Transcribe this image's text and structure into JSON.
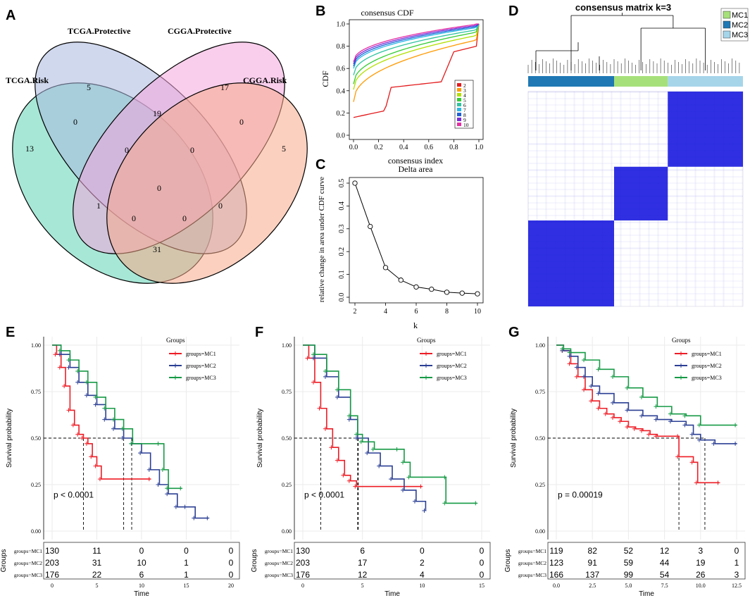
{
  "panel_labels": [
    "A",
    "B",
    "C",
    "D",
    "E",
    "F",
    "G"
  ],
  "chart_data": [
    {
      "panel": "A",
      "type": "venn",
      "sets": [
        "TCGA.Risk",
        "TCGA.Protective",
        "CGGA.Protective",
        "CGGA.Risk"
      ],
      "set_colors": [
        "#5fd4b4",
        "#a9b8e0",
        "#f4a6dc",
        "#f7a98a"
      ],
      "regions": [
        {
          "name": "TCGA.Risk only",
          "value": "13"
        },
        {
          "name": "TCGA.Protective only",
          "value": "5"
        },
        {
          "name": "CGGA.Protective only",
          "value": "17"
        },
        {
          "name": "CGGA.Risk only",
          "value": "5"
        },
        {
          "name": "TCGA.Risk & TCGA.Protective",
          "value": "0"
        },
        {
          "name": "TCGA.Protective & CGGA.Protective",
          "value": "19"
        },
        {
          "name": "CGGA.Protective & CGGA.Risk",
          "value": "0"
        },
        {
          "name": "TCGA.Risk & TCGA.Protective & CGGA.Protective",
          "value": "0"
        },
        {
          "name": "TCGA.Protective & CGGA.Protective & CGGA.Risk",
          "value": "0"
        },
        {
          "name": "all four",
          "value": "0"
        },
        {
          "name": "TCGA.Risk & CGGA.Protective",
          "value": "1"
        },
        {
          "name": "TCGA.Protective & CGGA.Risk",
          "value": "0"
        },
        {
          "name": "TCGA.Risk & CGGA.Protective & CGGA.Risk",
          "value": "0"
        },
        {
          "name": "TCGA.Risk & TCGA.Protective & CGGA.Risk",
          "value": "0"
        },
        {
          "name": "TCGA.Risk & CGGA.Risk",
          "value": "31"
        }
      ]
    },
    {
      "panel": "B",
      "type": "line",
      "title": "consensus CDF",
      "xlabel": "consensus index",
      "ylabel": "CDF",
      "xlim": [
        0,
        1
      ],
      "ylim": [
        0,
        1
      ],
      "xticks": [
        "0.0",
        "0.2",
        "0.4",
        "0.6",
        "0.8",
        "1.0"
      ],
      "yticks": [
        "0.0",
        "0.2",
        "0.4",
        "0.6",
        "0.8",
        "1.0"
      ],
      "legend": [
        "2",
        "3",
        "4",
        "5",
        "6",
        "7",
        "8",
        "9",
        "10"
      ],
      "colors": [
        "#e31a1c",
        "#ff9900",
        "#b2df00",
        "#33cc33",
        "#2ec4a0",
        "#29b6e6",
        "#1f5fd6",
        "#7a2bd6",
        "#e62ea3"
      ],
      "series": [
        {
          "name": "2",
          "start": 0.16,
          "end": 0.8
        },
        {
          "name": "3",
          "start": 0.3,
          "end": 0.86
        },
        {
          "name": "4",
          "start": 0.41,
          "end": 0.9
        },
        {
          "name": "5",
          "start": 0.46,
          "end": 0.93
        },
        {
          "name": "6",
          "start": 0.54,
          "end": 0.95
        },
        {
          "name": "7",
          "start": 0.6,
          "end": 0.97
        },
        {
          "name": "8",
          "start": 0.62,
          "end": 0.98
        },
        {
          "name": "9",
          "start": 0.64,
          "end": 0.99
        },
        {
          "name": "10",
          "start": 0.66,
          "end": 1.0
        }
      ]
    },
    {
      "panel": "C",
      "type": "line",
      "title": "Delta area",
      "xlabel": "k",
      "ylabel": "relative change in area under CDF curve",
      "x": [
        2,
        3,
        4,
        5,
        6,
        7,
        8,
        9,
        10
      ],
      "y": [
        0.5,
        0.31,
        0.13,
        0.075,
        0.045,
        0.035,
        0.022,
        0.018,
        0.015
      ],
      "xlim": [
        2,
        10
      ],
      "ylim": [
        0,
        0.5
      ],
      "xticks": [
        "2",
        "4",
        "6",
        "8",
        "10"
      ],
      "yticks": [
        "0.0",
        "0.1",
        "0.2",
        "0.3",
        "0.4",
        "0.5"
      ]
    },
    {
      "panel": "D",
      "type": "heatmap",
      "title": "consensus matrix k=3",
      "legend": [
        "MC1",
        "MC2",
        "MC3"
      ],
      "legend_colors": [
        "#a6e07a",
        "#1f78b4",
        "#a6d5ea"
      ],
      "cluster_order": [
        "MC2",
        "MC1",
        "MC3"
      ],
      "cluster_fractions": [
        0.4,
        0.25,
        0.35
      ],
      "heat_color": "#1a1adf"
    },
    {
      "panel": "E",
      "type": "survival",
      "legend_title": "Groups",
      "legend": [
        "groups=MC1",
        "groups=MC2",
        "groups=MC3"
      ],
      "colors": [
        "#ee1c25",
        "#2b3f94",
        "#169a45"
      ],
      "xlabel": "Time",
      "ylabel": "Survival probability",
      "xlim": [
        0,
        20
      ],
      "ylim": [
        0,
        1
      ],
      "xticks": [
        "0",
        "5",
        "10",
        "15",
        "20"
      ],
      "yticks": [
        "0.00",
        "0.25",
        "0.50",
        "0.75",
        "1.00"
      ],
      "pvalue": "p < 0.0001",
      "curves": [
        {
          "name": "MC1",
          "points": [
            [
              0,
              1
            ],
            [
              0.5,
              0.95
            ],
            [
              1,
              0.88
            ],
            [
              1.5,
              0.78
            ],
            [
              2,
              0.65
            ],
            [
              2.5,
              0.57
            ],
            [
              3,
              0.52
            ],
            [
              3.5,
              0.5
            ],
            [
              4,
              0.47
            ],
            [
              4.5,
              0.4
            ],
            [
              5,
              0.35
            ],
            [
              5.5,
              0.28
            ],
            [
              11,
              0.28
            ]
          ]
        },
        {
          "name": "MC2",
          "points": [
            [
              0,
              1
            ],
            [
              1,
              0.95
            ],
            [
              2,
              0.88
            ],
            [
              3,
              0.8
            ],
            [
              4,
              0.73
            ],
            [
              5,
              0.68
            ],
            [
              6,
              0.6
            ],
            [
              7,
              0.55
            ],
            [
              8,
              0.5
            ],
            [
              9,
              0.47
            ],
            [
              10,
              0.42
            ],
            [
              11,
              0.33
            ],
            [
              12,
              0.25
            ],
            [
              13,
              0.2
            ],
            [
              14,
              0.13
            ],
            [
              15,
              0.13
            ],
            [
              16,
              0.07
            ],
            [
              17.5,
              0.07
            ]
          ]
        },
        {
          "name": "MC3",
          "points": [
            [
              0,
              1
            ],
            [
              1,
              0.97
            ],
            [
              2,
              0.92
            ],
            [
              3,
              0.86
            ],
            [
              4,
              0.8
            ],
            [
              5,
              0.72
            ],
            [
              6,
              0.66
            ],
            [
              7,
              0.6
            ],
            [
              8,
              0.55
            ],
            [
              9,
              0.47
            ],
            [
              12,
              0.47
            ],
            [
              12.5,
              0.33
            ],
            [
              13,
              0.23
            ],
            [
              14.5,
              0.23
            ]
          ]
        }
      ],
      "medians": [
        3.5,
        8,
        8.9
      ],
      "risk_table": {
        "ylabel": "Groups",
        "rows": [
          {
            "label": "groups=MC1",
            "values": [
              "130",
              "11",
              "0",
              "0",
              "0"
            ]
          },
          {
            "label": "groups=MC2",
            "values": [
              "203",
              "31",
              "10",
              "1",
              "0"
            ]
          },
          {
            "label": "groups=MC3",
            "values": [
              "176",
              "22",
              "6",
              "1",
              "0"
            ]
          }
        ],
        "xticks": [
          "0",
          "5",
          "10",
          "15",
          "20"
        ],
        "xlabel": "Time"
      }
    },
    {
      "panel": "F",
      "type": "survival",
      "legend_title": "Groups",
      "legend": [
        "groups=MC1",
        "groups=MC2",
        "groups=MC3"
      ],
      "colors": [
        "#ee1c25",
        "#2b3f94",
        "#169a45"
      ],
      "xlabel": "Time",
      "ylabel": "Survival probability",
      "xlim": [
        0,
        15
      ],
      "ylim": [
        0,
        1
      ],
      "xticks": [
        "0",
        "5",
        "10",
        "15"
      ],
      "yticks": [
        "0.00",
        "0.25",
        "0.50",
        "0.75",
        "1.00"
      ],
      "pvalue": "p < 0.0001",
      "curves": [
        {
          "name": "MC1",
          "points": [
            [
              0,
              1
            ],
            [
              0.5,
              0.93
            ],
            [
              1,
              0.8
            ],
            [
              1.5,
              0.66
            ],
            [
              2,
              0.55
            ],
            [
              2.5,
              0.45
            ],
            [
              3,
              0.38
            ],
            [
              3.5,
              0.3
            ],
            [
              4,
              0.27
            ],
            [
              4.5,
              0.24
            ],
            [
              10,
              0.24
            ]
          ]
        },
        {
          "name": "MC2",
          "points": [
            [
              0,
              1
            ],
            [
              1,
              0.93
            ],
            [
              2,
              0.83
            ],
            [
              3,
              0.72
            ],
            [
              4,
              0.6
            ],
            [
              4.6,
              0.5
            ],
            [
              5.5,
              0.42
            ],
            [
              6.5,
              0.35
            ],
            [
              7.5,
              0.28
            ],
            [
              8.5,
              0.22
            ],
            [
              9.5,
              0.16
            ],
            [
              10.3,
              0.11
            ]
          ]
        },
        {
          "name": "MC3",
          "points": [
            [
              0,
              1
            ],
            [
              1,
              0.95
            ],
            [
              2,
              0.86
            ],
            [
              3,
              0.76
            ],
            [
              4,
              0.62
            ],
            [
              4.6,
              0.52
            ],
            [
              5,
              0.48
            ],
            [
              6,
              0.44
            ],
            [
              8,
              0.44
            ],
            [
              8.5,
              0.37
            ],
            [
              9,
              0.29
            ],
            [
              12,
              0.29
            ],
            [
              12,
              0.15
            ],
            [
              14.6,
              0.15
            ]
          ]
        }
      ],
      "medians": [
        1.5,
        4.6,
        4.65
      ],
      "risk_table": {
        "ylabel": "Groups",
        "rows": [
          {
            "label": "groups=MC1",
            "values": [
              "130",
              "6",
              "0",
              "0"
            ]
          },
          {
            "label": "groups=MC2",
            "values": [
              "203",
              "17",
              "2",
              "0"
            ]
          },
          {
            "label": "groups=MC3",
            "values": [
              "176",
              "12",
              "4",
              "0"
            ]
          }
        ],
        "xticks": [
          "0",
          "5",
          "10",
          "15"
        ],
        "xlabel": "Time"
      }
    },
    {
      "panel": "G",
      "type": "survival",
      "legend_title": "Groups",
      "legend": [
        "groups=MC1",
        "groups=MC2",
        "groups=MC3"
      ],
      "colors": [
        "#ee1c25",
        "#2b3f94",
        "#169a45"
      ],
      "xlabel": "Time",
      "ylabel": "Survival probability",
      "xlim": [
        0,
        12.5
      ],
      "ylim": [
        0,
        1
      ],
      "xticks": [
        "0.0",
        "2.5",
        "5.0",
        "7.5",
        "10.0",
        "12.5"
      ],
      "yticks": [
        "0.00",
        "0.25",
        "0.50",
        "0.75",
        "1.00"
      ],
      "pvalue": "p = 0.00019",
      "curves": [
        {
          "name": "MC1",
          "points": [
            [
              0,
              1
            ],
            [
              0.5,
              0.97
            ],
            [
              1,
              0.9
            ],
            [
              1.5,
              0.83
            ],
            [
              2,
              0.76
            ],
            [
              2.5,
              0.7
            ],
            [
              3,
              0.66
            ],
            [
              3.5,
              0.63
            ],
            [
              4,
              0.61
            ],
            [
              4.5,
              0.59
            ],
            [
              5,
              0.56
            ],
            [
              5.5,
              0.55
            ],
            [
              6,
              0.54
            ],
            [
              6.5,
              0.52
            ],
            [
              7,
              0.51
            ],
            [
              8.5,
              0.51
            ],
            [
              8.5,
              0.4
            ],
            [
              9.5,
              0.37
            ],
            [
              9.8,
              0.26
            ],
            [
              11.3,
              0.26
            ]
          ]
        },
        {
          "name": "MC2",
          "points": [
            [
              0,
              1
            ],
            [
              0.5,
              0.97
            ],
            [
              1,
              0.94
            ],
            [
              1.5,
              0.88
            ],
            [
              2,
              0.83
            ],
            [
              2.5,
              0.78
            ],
            [
              3,
              0.74
            ],
            [
              4,
              0.69
            ],
            [
              5,
              0.65
            ],
            [
              6,
              0.62
            ],
            [
              7,
              0.6
            ],
            [
              8,
              0.59
            ],
            [
              9,
              0.57
            ],
            [
              9.5,
              0.52
            ],
            [
              10,
              0.49
            ],
            [
              11,
              0.47
            ],
            [
              12.5,
              0.47
            ]
          ]
        },
        {
          "name": "MC3",
          "points": [
            [
              0,
              1
            ],
            [
              0.5,
              0.98
            ],
            [
              1,
              0.96
            ],
            [
              2,
              0.92
            ],
            [
              3,
              0.87
            ],
            [
              4,
              0.83
            ],
            [
              5,
              0.77
            ],
            [
              6,
              0.72
            ],
            [
              7,
              0.67
            ],
            [
              8,
              0.63
            ],
            [
              9,
              0.62
            ],
            [
              10,
              0.57
            ],
            [
              12.5,
              0.57
            ]
          ]
        }
      ],
      "medians": [
        8.5,
        10.3
      ],
      "risk_table": {
        "ylabel": "Groups",
        "rows": [
          {
            "label": "groups=MC1",
            "values": [
              "119",
              "82",
              "52",
              "12",
              "3",
              "0"
            ]
          },
          {
            "label": "groups=MC2",
            "values": [
              "123",
              "91",
              "59",
              "44",
              "19",
              "1"
            ]
          },
          {
            "label": "groups=MC3",
            "values": [
              "166",
              "137",
              "99",
              "54",
              "26",
              "3"
            ]
          }
        ],
        "xticks": [
          "0.0",
          "2.5",
          "5.0",
          "7.5",
          "10.0",
          "12.5"
        ],
        "xlabel": "Time"
      }
    }
  ]
}
